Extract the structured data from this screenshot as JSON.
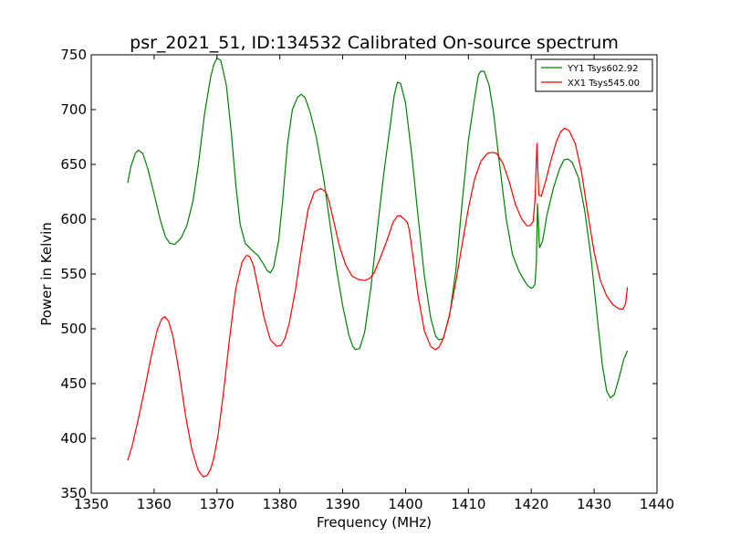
{
  "chart_data": {
    "type": "line",
    "title": "psr_2021_51, ID:134532 Calibrated On-source spectrum",
    "xlabel": "Frequency (MHz)",
    "ylabel": "Power in Kelvin",
    "xlim": [
      1350,
      1440
    ],
    "ylim": [
      350,
      750
    ],
    "xticks": [
      1350,
      1360,
      1370,
      1380,
      1390,
      1400,
      1410,
      1420,
      1430,
      1440
    ],
    "yticks": [
      350,
      400,
      450,
      500,
      550,
      600,
      650,
      700,
      750
    ],
    "grid": false,
    "legend_position": "top-right",
    "series": [
      {
        "name": "YY1 Tsys602.92",
        "color": "#008000",
        "x": [
          1355.8,
          1356.3,
          1357.0,
          1357.5,
          1358.2,
          1359.0,
          1360.0,
          1361.0,
          1361.8,
          1362.5,
          1363.3,
          1364.3,
          1365.2,
          1366.2,
          1367.0,
          1368.0,
          1369.0,
          1369.5,
          1370.0,
          1370.6,
          1371.5,
          1372.3,
          1373.0,
          1373.7,
          1374.5,
          1375.5,
          1376.5,
          1377.3,
          1378.0,
          1378.5,
          1379.0,
          1379.8,
          1380.5,
          1381.2,
          1382.0,
          1382.8,
          1383.4,
          1384.0,
          1384.8,
          1385.8,
          1387.0,
          1388.0,
          1389.0,
          1390.0,
          1391.0,
          1391.6,
          1392.0,
          1392.7,
          1393.5,
          1394.5,
          1395.5,
          1396.5,
          1397.5,
          1398.2,
          1398.7,
          1399.2,
          1400.0,
          1401.0,
          1402.0,
          1403.0,
          1404.0,
          1404.8,
          1405.3,
          1406.0,
          1407.0,
          1408.0,
          1409.0,
          1410.0,
          1411.0,
          1411.6,
          1412.0,
          1412.5,
          1413.3,
          1414.0,
          1415.0,
          1416.0,
          1417.0,
          1418.0,
          1419.0,
          1419.5,
          1420.0,
          1420.3,
          1420.6,
          1420.8,
          1421.0,
          1421.3,
          1421.8,
          1422.5,
          1423.5,
          1424.5,
          1425.2,
          1425.8,
          1426.5,
          1427.5,
          1428.5,
          1429.5,
          1430.5,
          1431.3,
          1432.0,
          1432.6,
          1433.2,
          1434.0,
          1434.7,
          1435.3
        ],
        "y": [
          633,
          648,
          660,
          663,
          660,
          646,
          623,
          599,
          584,
          578,
          577,
          583,
          594,
          617,
          648,
          695,
          730,
          741,
          747,
          745,
          722,
          678,
          631,
          595,
          578,
          572,
          567,
          560,
          553,
          551,
          556,
          580,
          620,
          668,
          700,
          711,
          714,
          711,
          698,
          675,
          636,
          595,
          555,
          521,
          494,
          484,
          481,
          482,
          497,
          538,
          590,
          640,
          683,
          713,
          725,
          724,
          706,
          658,
          602,
          548,
          510,
          493,
          490,
          491,
          512,
          553,
          615,
          672,
          711,
          732,
          735,
          735,
          722,
          697,
          648,
          601,
          568,
          553,
          543,
          539,
          537,
          538,
          541,
          560,
          614,
          574,
          580,
          604,
          628,
          646,
          654,
          655,
          652,
          638,
          608,
          565,
          510,
          467,
          443,
          437,
          440,
          456,
          472,
          480
        ]
      },
      {
        "name": "XX1 Tsys545.00",
        "color": "#ff0000",
        "x": [
          1355.8,
          1356.5,
          1357.5,
          1358.5,
          1359.5,
          1360.5,
          1361.2,
          1361.7,
          1362.3,
          1363.0,
          1364.0,
          1365.0,
          1366.0,
          1367.0,
          1367.8,
          1368.4,
          1369.0,
          1369.5,
          1370.2,
          1371.0,
          1372.0,
          1373.0,
          1374.0,
          1374.7,
          1375.2,
          1375.8,
          1376.6,
          1377.5,
          1378.5,
          1379.5,
          1380.2,
          1380.8,
          1381.5,
          1382.5,
          1383.5,
          1384.5,
          1385.5,
          1386.5,
          1387.3,
          1387.8,
          1388.5,
          1389.5,
          1390.5,
          1391.5,
          1392.5,
          1393.5,
          1394.3,
          1395.0,
          1396.0,
          1397.0,
          1398.0,
          1398.7,
          1399.2,
          1399.8,
          1400.3,
          1400.6,
          1401.2,
          1402.0,
          1403.0,
          1404.0,
          1404.7,
          1405.3,
          1406.0,
          1407.0,
          1408.0,
          1409.0,
          1410.0,
          1411.0,
          1412.0,
          1413.0,
          1413.8,
          1414.5,
          1415.5,
          1416.5,
          1417.5,
          1418.5,
          1419.3,
          1419.8,
          1420.3,
          1420.6,
          1420.9,
          1421.2,
          1421.6,
          1422.3,
          1423.0,
          1424.0,
          1424.7,
          1425.3,
          1426.0,
          1427.0,
          1428.0,
          1429.0,
          1430.0,
          1431.0,
          1432.0,
          1433.0,
          1434.0,
          1434.6,
          1435.0,
          1435.3
        ],
        "y": [
          380,
          393,
          418,
          445,
          474,
          499,
          509,
          511,
          507,
          493,
          460,
          421,
          390,
          371,
          365,
          366,
          372,
          382,
          404,
          440,
          491,
          537,
          561,
          567,
          566,
          558,
          536,
          510,
          490,
          484,
          485,
          491,
          505,
          536,
          575,
          609,
          625,
          628,
          625,
          617,
          600,
          575,
          558,
          548,
          545,
          544,
          546,
          551,
          565,
          580,
          597,
          603,
          603,
          600,
          597,
          590,
          565,
          530,
          498,
          484,
          481,
          483,
          491,
          513,
          543,
          577,
          610,
          637,
          653,
          660,
          661,
          660,
          651,
          634,
          613,
          600,
          594,
          594,
          598,
          618,
          669,
          622,
          621,
          635,
          651,
          671,
          680,
          683,
          681,
          669,
          643,
          605,
          570,
          544,
          530,
          522,
          518,
          518,
          523,
          538
        ]
      }
    ]
  }
}
